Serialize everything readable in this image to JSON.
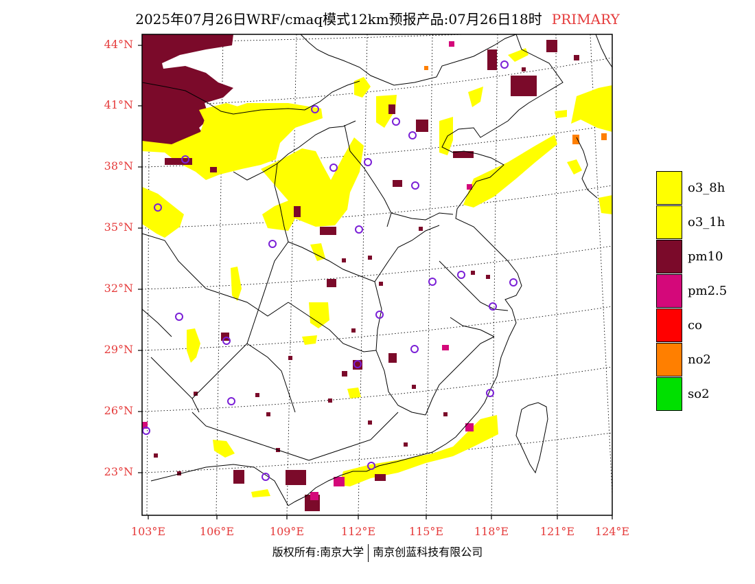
{
  "title": {
    "main": "2025年07月26日WRF/cmaq模式12km预报产品:07月26日18时",
    "tag": "PRIMARY"
  },
  "map": {
    "lat_labels": [
      "44°N",
      "41°N",
      "38°N",
      "35°N",
      "32°N",
      "29°N",
      "26°N",
      "23°N"
    ],
    "lon_labels": [
      "103°E",
      "106°E",
      "109°E",
      "112°E",
      "115°E",
      "118°E",
      "121°E",
      "124°E"
    ],
    "lat_values": [
      44,
      41,
      38,
      35,
      32,
      29,
      26,
      23
    ],
    "lon_values": [
      103,
      106,
      109,
      112,
      115,
      118,
      121,
      124
    ]
  },
  "legend": {
    "items": [
      {
        "label": "o3_8h",
        "color": "#ffff00"
      },
      {
        "label": "o3_1h",
        "color": "#ffff00"
      },
      {
        "label": "pm10",
        "color": "#7b0a2a"
      },
      {
        "label": "pm2.5",
        "color": "#d4087a"
      },
      {
        "label": "co",
        "color": "#ff0000"
      },
      {
        "label": "no2",
        "color": "#ff7f00"
      },
      {
        "label": "so2",
        "color": "#00e000"
      }
    ]
  },
  "footer": {
    "left": "版权所有:南京大学",
    "right": "南京创蓝科技有限公司"
  },
  "colors": {
    "axis_label": "#e53a3a",
    "station_marker": "#7a1fd6"
  }
}
